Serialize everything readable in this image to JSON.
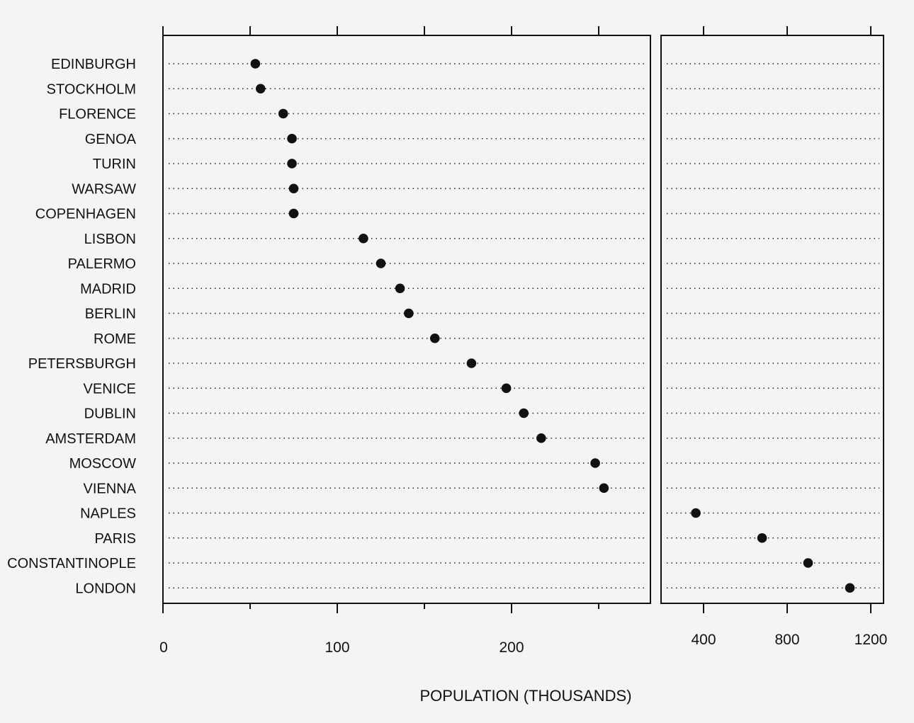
{
  "chart_data": {
    "type": "scatter",
    "xlabel": "POPULATION (THOUSANDS)",
    "ylabel": "",
    "title": "",
    "scale_break": true,
    "grid": "dotted horizontal guides",
    "panels": [
      {
        "xlim": [
          0,
          280
        ],
        "xticks": [
          0,
          100,
          200
        ],
        "tick_labels": [
          "0",
          "100",
          "200"
        ]
      },
      {
        "xlim": [
          300,
          1260
        ],
        "xticks": [
          400,
          800,
          1200
        ],
        "tick_labels": [
          "400",
          "800",
          "1200"
        ]
      }
    ],
    "categories": [
      "EDINBURGH",
      "STOCKHOLM",
      "FLORENCE",
      "GENOA",
      "TURIN",
      "WARSAW",
      "COPENHAGEN",
      "LISBON",
      "PALERMO",
      "MADRID",
      "BERLIN",
      "ROME",
      "PETERSBURGH",
      "VENICE",
      "DUBLIN",
      "AMSTERDAM",
      "MOSCOW",
      "VIENNA",
      "NAPLES",
      "PARIS",
      "CONSTANTINOPLE",
      "LONDON"
    ],
    "values": [
      53,
      56,
      69,
      74,
      74,
      75,
      75,
      115,
      125,
      136,
      141,
      156,
      177,
      197,
      207,
      217,
      248,
      253,
      363,
      680,
      900,
      1100
    ]
  }
}
